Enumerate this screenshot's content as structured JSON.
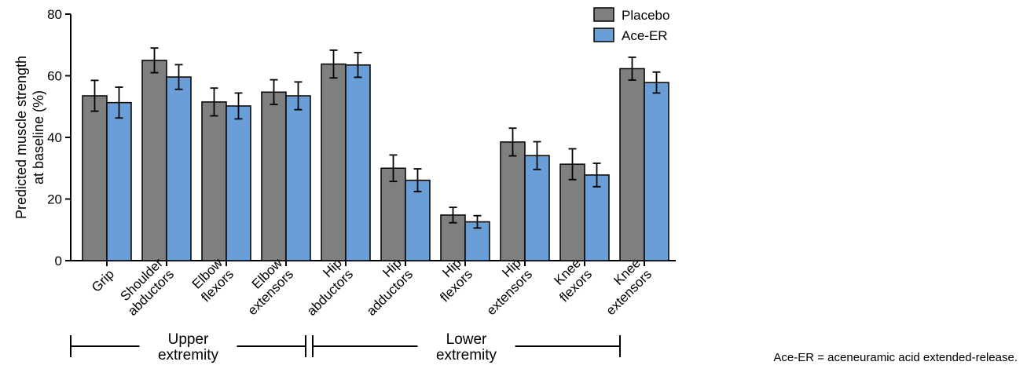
{
  "chart_data": {
    "type": "bar",
    "title": "",
    "ylabel_lines": [
      "Predicted muscle strength",
      "at baseline (%)"
    ],
    "xlabel": "",
    "ylim": [
      0,
      80
    ],
    "yticks": [
      0,
      20,
      40,
      60,
      80
    ],
    "grid": false,
    "legend_position": "top-right",
    "categories": [
      [
        "Grip"
      ],
      [
        "Shoulder",
        "abductors"
      ],
      [
        "Elbow",
        "flexors"
      ],
      [
        "Elbow",
        "extensors"
      ],
      [
        "Hip",
        "abductors"
      ],
      [
        "Hip",
        "adductors"
      ],
      [
        "Hip",
        "flexors"
      ],
      [
        "Hip",
        "extensors"
      ],
      [
        "Knee",
        "flexors"
      ],
      [
        "Knee",
        "extensors"
      ]
    ],
    "series": [
      {
        "name": "Placebo",
        "color": "#7f7f7f",
        "values": [
          53.5,
          65.0,
          51.5,
          54.7,
          63.8,
          30.0,
          14.8,
          38.5,
          31.3,
          62.3
        ],
        "error": [
          5.0,
          4.0,
          4.5,
          4.0,
          4.5,
          4.3,
          2.5,
          4.5,
          5.0,
          3.7
        ]
      },
      {
        "name": "Ace-ER",
        "color": "#6a9ed6",
        "values": [
          51.3,
          59.6,
          50.2,
          53.5,
          63.5,
          26.1,
          12.6,
          34.1,
          27.8,
          57.8
        ],
        "error": [
          5.0,
          4.0,
          4.2,
          4.5,
          4.0,
          3.7,
          2.0,
          4.5,
          3.8,
          3.4
        ]
      }
    ],
    "groups": [
      {
        "label_lines": [
          "Upper",
          "extremity"
        ],
        "start_category": 0,
        "end_category": 3
      },
      {
        "label_lines": [
          "Lower",
          "extremity"
        ],
        "start_category": 4,
        "end_category": 8
      }
    ]
  },
  "footnote": "Ace-ER = aceneuramic acid extended-release."
}
